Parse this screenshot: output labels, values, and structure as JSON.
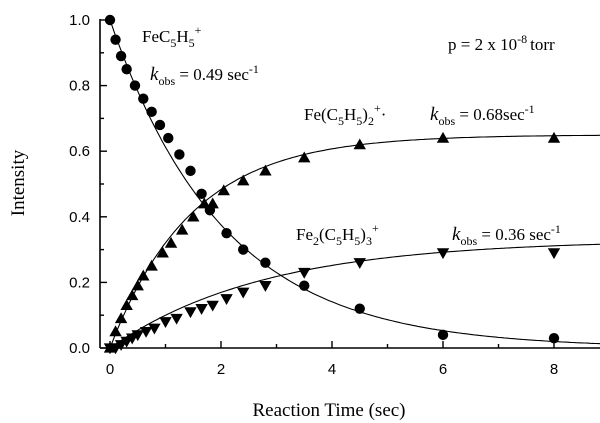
{
  "chart_data": {
    "type": "scatter",
    "title": "",
    "xlabel": "Reaction Time (sec)",
    "ylabel": "Intensity",
    "xlim": [
      0,
      9
    ],
    "ylim": [
      0,
      1.0
    ],
    "xticks": [
      0,
      2,
      4,
      6,
      8
    ],
    "yticks": [
      0.0,
      0.2,
      0.4,
      0.6,
      0.8,
      1.0
    ],
    "grid": false,
    "pressure_note": "p = 2 x 10",
    "pressure_exp": "-8",
    "pressure_unit": "torr",
    "series": [
      {
        "marker": "circle",
        "name_parts": {
          "a": "FeC",
          "b": "5",
          "c": "H",
          "d": "5",
          "e": "+"
        },
        "kobs": {
          "k": "k",
          "sub": "obs",
          "value": " = 0.49 sec",
          "exp": "-1"
        },
        "fit": {
          "A": 1.0,
          "C": 0.0,
          "k": 0.49
        },
        "points": [
          {
            "x": 0.0,
            "y": 1.0
          },
          {
            "x": 0.1,
            "y": 0.94
          },
          {
            "x": 0.2,
            "y": 0.89
          },
          {
            "x": 0.3,
            "y": 0.85
          },
          {
            "x": 0.45,
            "y": 0.8
          },
          {
            "x": 0.6,
            "y": 0.76
          },
          {
            "x": 0.75,
            "y": 0.72
          },
          {
            "x": 0.9,
            "y": 0.68
          },
          {
            "x": 1.05,
            "y": 0.64
          },
          {
            "x": 1.25,
            "y": 0.59
          },
          {
            "x": 1.45,
            "y": 0.54
          },
          {
            "x": 1.65,
            "y": 0.47
          },
          {
            "x": 1.8,
            "y": 0.42
          },
          {
            "x": 2.1,
            "y": 0.35
          },
          {
            "x": 2.4,
            "y": 0.3
          },
          {
            "x": 2.8,
            "y": 0.26
          },
          {
            "x": 3.5,
            "y": 0.19
          },
          {
            "x": 4.5,
            "y": 0.12
          },
          {
            "x": 6.0,
            "y": 0.04
          },
          {
            "x": 8.0,
            "y": 0.03
          }
        ]
      },
      {
        "marker": "triangle-up",
        "name_parts": {
          "a": "Fe(C",
          "b": "5",
          "c": "H",
          "d": "5",
          "e": ")",
          "f": "2",
          "g": "+",
          "h": "·"
        },
        "kobs": {
          "k": "k",
          "sub": "obs",
          "value": " = 0.68sec",
          "exp": "-1"
        },
        "fit": {
          "A": 0.65,
          "C": 0.65,
          "k": 0.68
        },
        "points": [
          {
            "x": 0.0,
            "y": 0.0
          },
          {
            "x": 0.1,
            "y": 0.05
          },
          {
            "x": 0.2,
            "y": 0.09
          },
          {
            "x": 0.3,
            "y": 0.13
          },
          {
            "x": 0.4,
            "y": 0.16
          },
          {
            "x": 0.5,
            "y": 0.19
          },
          {
            "x": 0.6,
            "y": 0.22
          },
          {
            "x": 0.75,
            "y": 0.25
          },
          {
            "x": 0.95,
            "y": 0.29
          },
          {
            "x": 1.1,
            "y": 0.32
          },
          {
            "x": 1.3,
            "y": 0.36
          },
          {
            "x": 1.5,
            "y": 0.4
          },
          {
            "x": 1.7,
            "y": 0.44
          },
          {
            "x": 1.85,
            "y": 0.44
          },
          {
            "x": 2.05,
            "y": 0.48
          },
          {
            "x": 2.4,
            "y": 0.51
          },
          {
            "x": 2.8,
            "y": 0.54
          },
          {
            "x": 3.5,
            "y": 0.58
          },
          {
            "x": 4.5,
            "y": 0.62
          },
          {
            "x": 6.0,
            "y": 0.64
          },
          {
            "x": 8.0,
            "y": 0.64
          }
        ]
      },
      {
        "marker": "triangle-down",
        "name_parts": {
          "a": "Fe",
          "b": "2",
          "c": "(C",
          "d": "5",
          "e": "H",
          "f": "5",
          "g": ")",
          "h": "3",
          "i": "+"
        },
        "kobs": {
          "k": "k",
          "sub": "obs",
          "value": " = 0.36 sec",
          "exp": "-1"
        },
        "fit": {
          "A": 0.33,
          "C": 0.33,
          "k": 0.36
        },
        "points": [
          {
            "x": 0.0,
            "y": 0.0
          },
          {
            "x": 0.1,
            "y": 0.0
          },
          {
            "x": 0.2,
            "y": 0.01
          },
          {
            "x": 0.3,
            "y": 0.02
          },
          {
            "x": 0.4,
            "y": 0.03
          },
          {
            "x": 0.5,
            "y": 0.04
          },
          {
            "x": 0.65,
            "y": 0.05
          },
          {
            "x": 0.8,
            "y": 0.06
          },
          {
            "x": 1.0,
            "y": 0.08
          },
          {
            "x": 1.2,
            "y": 0.09
          },
          {
            "x": 1.45,
            "y": 0.11
          },
          {
            "x": 1.65,
            "y": 0.12
          },
          {
            "x": 1.85,
            "y": 0.13
          },
          {
            "x": 2.1,
            "y": 0.15
          },
          {
            "x": 2.4,
            "y": 0.17
          },
          {
            "x": 2.8,
            "y": 0.19
          },
          {
            "x": 3.5,
            "y": 0.23
          },
          {
            "x": 4.5,
            "y": 0.26
          },
          {
            "x": 6.0,
            "y": 0.29
          },
          {
            "x": 8.0,
            "y": 0.29
          }
        ]
      }
    ]
  }
}
